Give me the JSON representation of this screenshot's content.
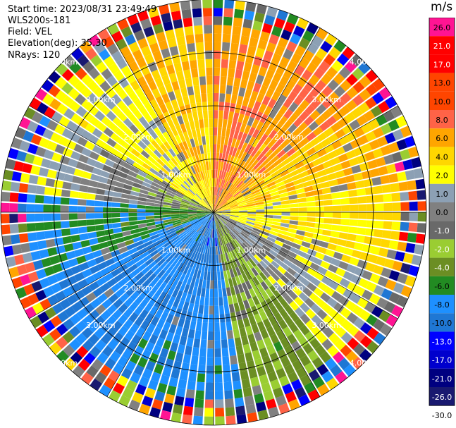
{
  "meta": {
    "start_time": "Start time: 2023/08/31 23:49:49",
    "instrument": "WLS200s-181",
    "field": "Field: VEL",
    "elevation": "Elevation(deg): 35.30",
    "nrays": "NRays: 120"
  },
  "colorbar": {
    "unit": "m/s",
    "bins": [
      {
        "label": "26.0",
        "color": "#ff1493"
      },
      {
        "label": "21.0",
        "color": "#ff0000"
      },
      {
        "label": "17.0",
        "color": "#ff0000"
      },
      {
        "label": "13.0",
        "color": "#ff4500"
      },
      {
        "label": "10.0",
        "color": "#ff4500"
      },
      {
        "label": "8.0",
        "color": "#ff6347"
      },
      {
        "label": "6.0",
        "color": "#ffa500"
      },
      {
        "label": "4.0",
        "color": "#ffd700"
      },
      {
        "label": "2.0",
        "color": "#ffff00"
      },
      {
        "label": "1.0",
        "color": "#8ca0b4"
      },
      {
        "label": "0.0",
        "color": "#808080"
      },
      {
        "label": "-1.0",
        "color": "#696969"
      },
      {
        "label": "-2.0",
        "color": "#9acd32"
      },
      {
        "label": "-4.0",
        "color": "#6b8e23"
      },
      {
        "label": "-6.0",
        "color": "#228b22"
      },
      {
        "label": "-8.0",
        "color": "#1e90ff"
      },
      {
        "label": "-10.0",
        "color": "#1f77d4"
      },
      {
        "label": "-13.0",
        "color": "#0000ff"
      },
      {
        "label": "-17.0",
        "color": "#0000cd"
      },
      {
        "label": "-21.0",
        "color": "#000080"
      },
      {
        "label": "-26.0",
        "color": "#191970"
      },
      {
        "label": "-30.0",
        "color": ""
      }
    ]
  },
  "chart_data": {
    "type": "heatmap",
    "projection": "polar-ppi",
    "field": "VEL",
    "units": "m/s",
    "nrays": 120,
    "range_rings_km": [
      1,
      2,
      3,
      4
    ],
    "range_ring_labels": [
      "1.00km",
      "2.00km",
      "3.00km",
      "4.00km"
    ],
    "max_range_km": 4.0,
    "gates_per_ray": 25,
    "azimuth_convention": "degrees clockwise from north",
    "velocity_sectors": [
      {
        "azimuth_from": 0,
        "azimuth_to": 20,
        "near_ms": 9.0,
        "far_ms": 6.5
      },
      {
        "azimuth_from": 20,
        "azimuth_to": 55,
        "near_ms": 7.0,
        "far_ms": 8.0
      },
      {
        "azimuth_from": 55,
        "azimuth_to": 80,
        "near_ms": 5.0,
        "far_ms": 6.0
      },
      {
        "azimuth_from": 80,
        "azimuth_to": 110,
        "near_ms": 2.5,
        "far_ms": 5.0
      },
      {
        "azimuth_from": 110,
        "azimuth_to": 140,
        "near_ms": 0.0,
        "far_ms": 2.5
      },
      {
        "azimuth_from": 140,
        "azimuth_to": 170,
        "near_ms": -1.5,
        "far_ms": -3.0
      },
      {
        "azimuth_from": 170,
        "azimuth_to": 210,
        "near_ms": -9.0,
        "far_ms": -6.5
      },
      {
        "azimuth_from": 210,
        "azimuth_to": 250,
        "near_ms": -7.0,
        "far_ms": -8.5
      },
      {
        "azimuth_from": 250,
        "azimuth_to": 275,
        "near_ms": -4.0,
        "far_ms": -7.0
      },
      {
        "azimuth_from": 275,
        "azimuth_to": 300,
        "near_ms": -1.5,
        "far_ms": 2.5
      },
      {
        "azimuth_from": 300,
        "azimuth_to": 330,
        "near_ms": 3.0,
        "far_ms": 2.5
      },
      {
        "azimuth_from": 330,
        "azimuth_to": 360,
        "near_ms": 4.5,
        "far_ms": 6.5
      }
    ],
    "noise_beyond_km": 3.4
  }
}
